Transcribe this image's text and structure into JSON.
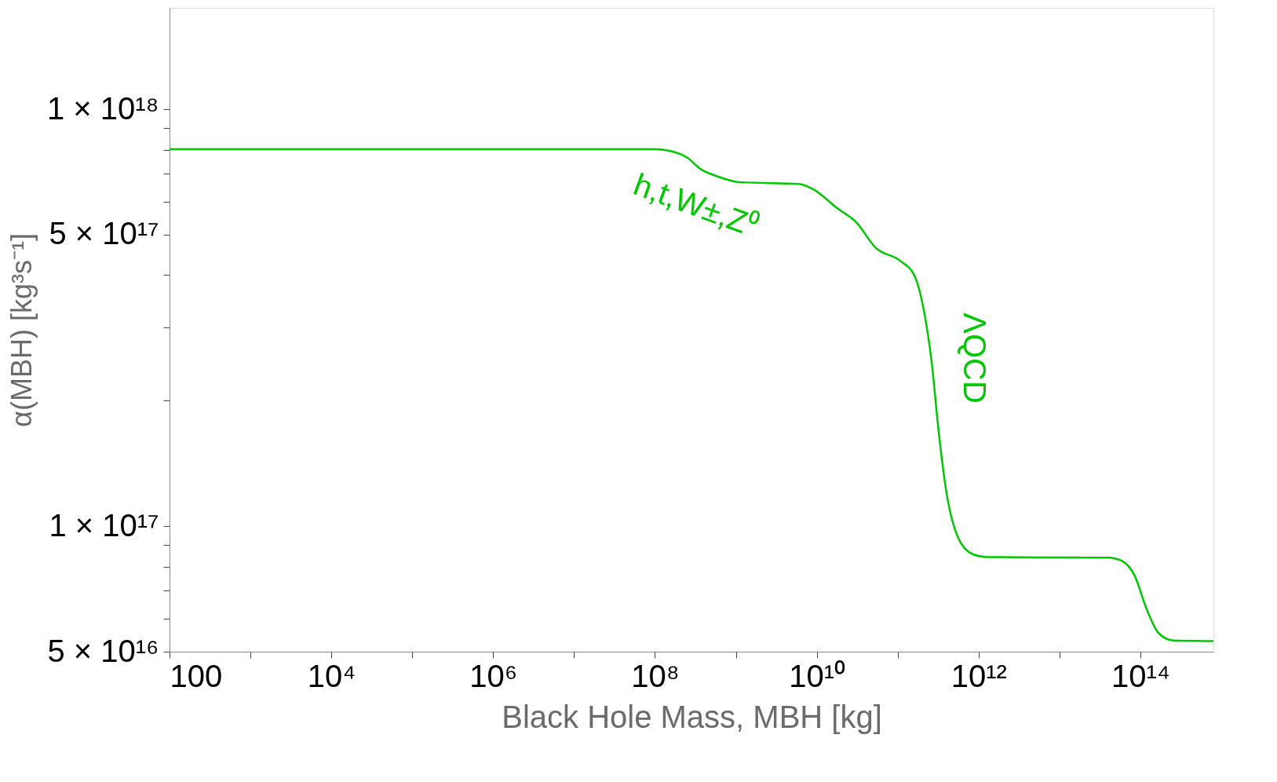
{
  "chart_data": {
    "type": "line",
    "xlabel": "Black Hole Mass, MBH [kg]",
    "ylabel": "α(MBH) [kg³s⁻¹]",
    "log": "xy",
    "grid": false,
    "legend": false,
    "marker": "none",
    "line_style": "solid",
    "xlim": [
      100,
      800000000000000.0
    ],
    "ylim": [
      5e+16,
      1.75e+18
    ],
    "xticks": [
      100,
      {
        "value": 1000,
        "label": null
      },
      {
        "value": 10000.0,
        "label": "10⁴"
      },
      {
        "value": 100000.0,
        "label": null
      },
      {
        "value": 1000000.0,
        "label": "10⁶"
      },
      {
        "value": 10000000.0,
        "label": null
      },
      {
        "value": 100000000.0,
        "label": "10⁸"
      },
      {
        "value": 1000000000.0,
        "label": null
      },
      {
        "value": 10000000000.0,
        "label": "10¹⁰"
      },
      {
        "value": 100000000000.0,
        "label": null
      },
      {
        "value": 1000000000000.0,
        "label": "10¹²"
      },
      {
        "value": 10000000000000.0,
        "label": null
      },
      {
        "value": 100000000000000.0,
        "label": "10¹⁴"
      }
    ],
    "yticks": [
      {
        "value": 5e+16,
        "label": "5 × 10¹⁶"
      },
      {
        "value": 6e+16,
        "label": null
      },
      {
        "value": 7e+16,
        "label": null
      },
      {
        "value": 8e+16,
        "label": null
      },
      {
        "value": 9e+16,
        "label": null
      },
      {
        "value": 1e+17,
        "label": "1 × 10¹⁷"
      },
      {
        "value": 2e+17,
        "label": null
      },
      {
        "value": 3e+17,
        "label": null
      },
      {
        "value": 4e+17,
        "label": null
      },
      {
        "value": 5e+17,
        "label": "5 × 10¹⁷"
      },
      {
        "value": 6e+17,
        "label": null
      },
      {
        "value": 7e+17,
        "label": null
      },
      {
        "value": 8e+17,
        "label": null
      },
      {
        "value": 9e+17,
        "label": null
      },
      {
        "value": 1e+18,
        "label": "1 × 10¹⁸"
      }
    ],
    "series": [
      {
        "color": "#00c800",
        "x": [
          100,
          100000000.0,
          176000000.0,
          248000000.0,
          376000000.0,
          568000000.0,
          1130000000.0,
          5900000000.0,
          8900000000.0,
          17800000000.0,
          30900000000.0,
          53500000000.0,
          107000000000.0,
          161000000000.0,
          212000000000.0,
          261000000000.0,
          321000000000.0,
          394000000000.0,
          557000000000.0,
          843000000000.0,
          1260000000000.0,
          39800000000000.0,
          60300000000000.0,
          85100000000000.0,
          120000000000000.0,
          169000000000000.0,
          256000000000000.0,
          800000000000000.0
        ],
        "values": [
          8.02e+17,
          8.02e+17,
          7.89e+17,
          7.66e+17,
          7.16e+17,
          6.92e+17,
          6.68e+17,
          6.62e+17,
          6.44e+17,
          5.79e+17,
          5.35e+17,
          4.65e+17,
          4.33e+17,
          3.99e+17,
          3.27e+17,
          2.51e+17,
          1.69e+17,
          1.23e+17,
          9.4e+16,
          8.57e+16,
          8.43e+16,
          8.4e+16,
          8.24e+16,
          7.6e+16,
          6.31e+16,
          5.53e+16,
          5.32e+16,
          5.3e+16
        ]
      }
    ],
    "annotations": [
      "h,t,W±,Z⁰",
      "ΛQCD"
    ]
  }
}
